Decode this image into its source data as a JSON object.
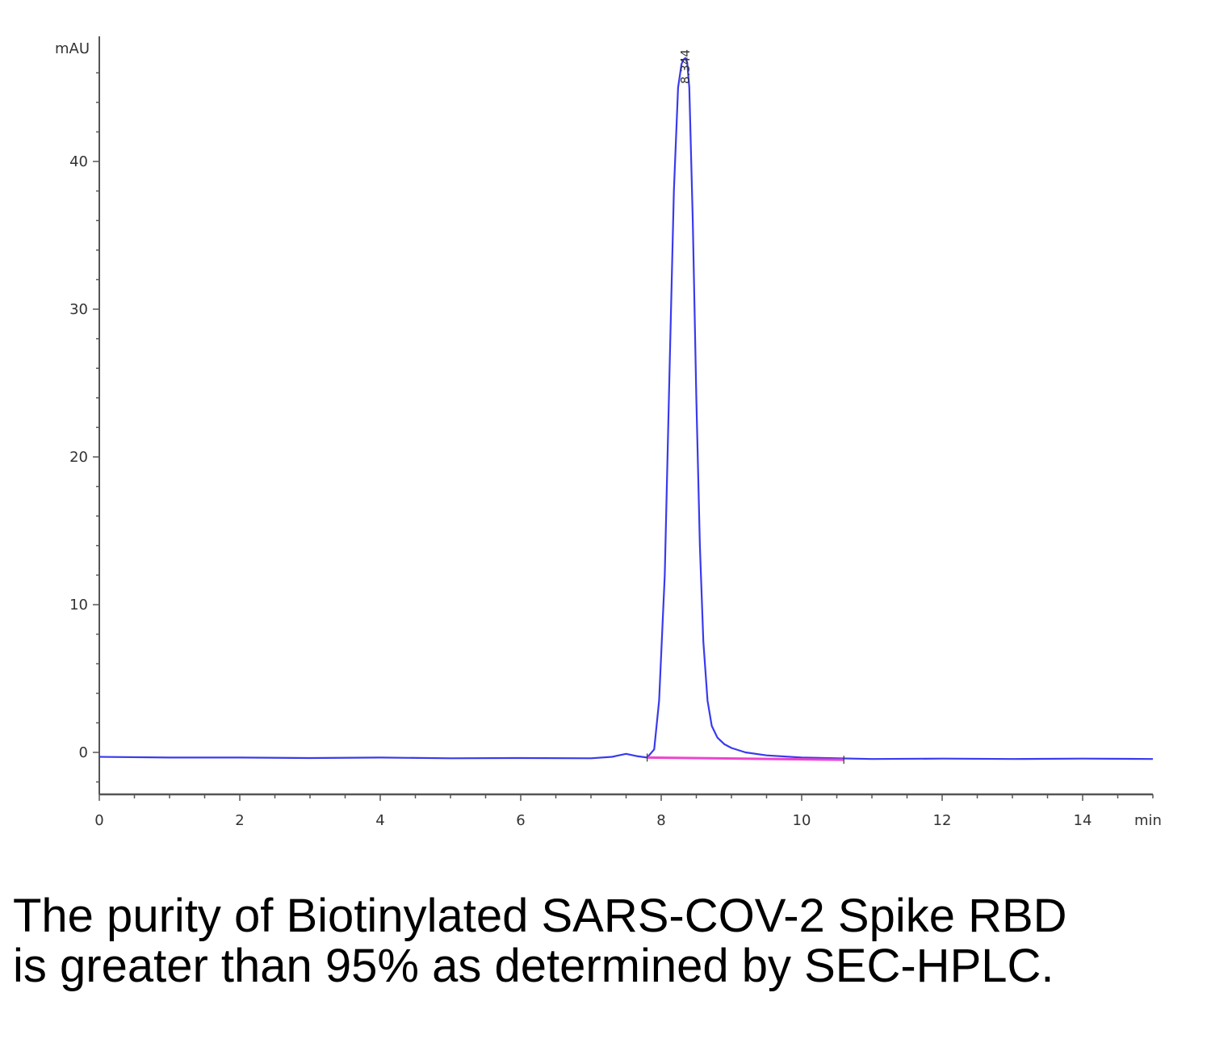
{
  "chart_data": {
    "type": "line",
    "ylabel": "mAU",
    "xlabel": "min",
    "xlim": [
      0,
      15
    ],
    "ylim": [
      -3,
      48
    ],
    "x_ticks": [
      0,
      2,
      4,
      6,
      8,
      10,
      12,
      14
    ],
    "y_ticks": [
      0,
      10,
      20,
      30,
      40
    ],
    "peak_label": "8.344",
    "series": [
      {
        "color": "#3a3aee",
        "x": [
          0.0,
          1.0,
          2.0,
          3.0,
          4.0,
          5.0,
          6.0,
          7.0,
          7.3,
          7.5,
          7.65,
          7.8,
          7.9,
          7.97,
          8.05,
          8.12,
          8.18,
          8.24,
          8.29,
          8.32,
          8.344,
          8.37,
          8.4,
          8.45,
          8.5,
          8.55,
          8.6,
          8.66,
          8.72,
          8.8,
          8.9,
          9.0,
          9.2,
          9.5,
          10.0,
          11.0,
          12.0,
          13.0,
          14.0,
          15.0
        ],
        "y": [
          -0.3,
          -0.35,
          -0.35,
          -0.38,
          -0.35,
          -0.4,
          -0.38,
          -0.4,
          -0.3,
          -0.1,
          -0.25,
          -0.35,
          0.2,
          3.5,
          12.0,
          26.0,
          38.0,
          45.0,
          46.6,
          46.9,
          47.0,
          46.7,
          45.0,
          36.0,
          24.0,
          14.0,
          7.5,
          3.5,
          1.8,
          1.0,
          0.55,
          0.3,
          0.0,
          -0.2,
          -0.35,
          -0.45,
          -0.42,
          -0.45,
          -0.42,
          -0.45
        ]
      }
    ],
    "baseline": {
      "color": "#ee44cc",
      "x": [
        7.8,
        10.6
      ],
      "y": [
        -0.35,
        -0.5
      ]
    }
  },
  "caption": "The purity of Biotinylated SARS-COV-2 Spike RBD is greater than 95% as determined by SEC-HPLC."
}
